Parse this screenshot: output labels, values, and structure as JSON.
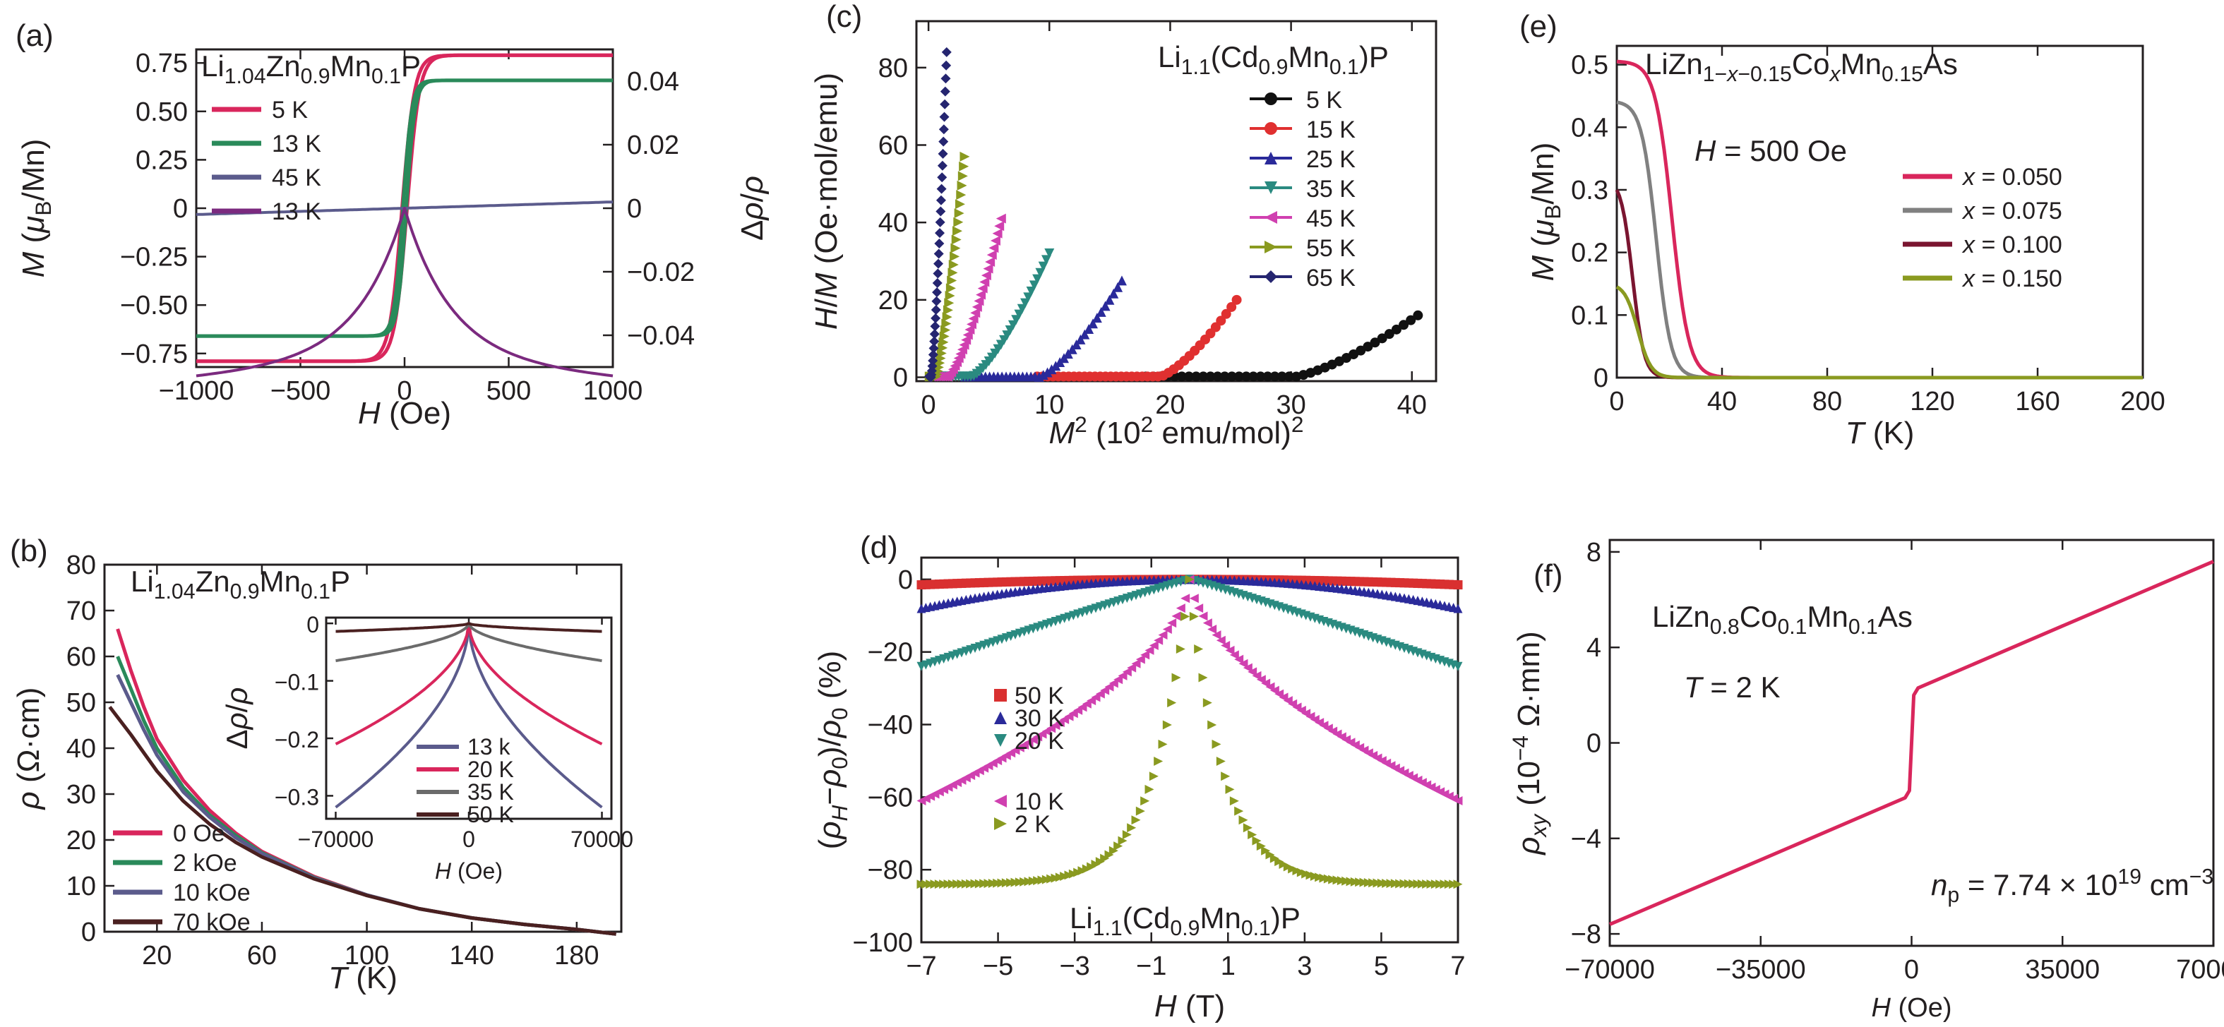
{
  "chart_data": [
    {
      "panel": "(a)",
      "type": "line",
      "annotation": "Li<sub>1.04</sub>Zn<sub>0.9</sub>Mn<sub>0.1</sub>P",
      "xlabel": "<i>H</i> (Oe)",
      "ylabel": "<i>M</i> (<i>μ</i><sub>B</sub>/Mn)",
      "y2label": "Δ<i>ρ</i>/<i>ρ</i>",
      "xlim": [
        -1000,
        1000
      ],
      "ylim": [
        -0.82,
        0.82
      ],
      "y2lim": [
        -0.05,
        0.05
      ],
      "xticks": [
        "−1000",
        "−500",
        "0",
        "500",
        "1000"
      ],
      "xtick_values": [
        -1000,
        -500,
        0,
        500,
        1000
      ],
      "yticks": [
        "−0.75",
        "−0.50",
        "−0.25",
        "0",
        "0.25",
        "0.50",
        "0.75"
      ],
      "ytick_values": [
        -0.75,
        -0.5,
        -0.25,
        0,
        0.25,
        0.5,
        0.75
      ],
      "y2ticks": [
        "−0.04",
        "−0.02",
        "0",
        "0.02",
        "0.04"
      ],
      "y2tick_values": [
        -0.04,
        -0.02,
        0,
        0.02,
        0.04
      ],
      "y2_color": "#7b2a7f",
      "legend_position": "top-left",
      "series": [
        {
          "name": "5 K",
          "color": "#d9265c",
          "kind": "hysteresis",
          "ms": 0.79,
          "width": 60,
          "hc": 12
        },
        {
          "name": "13 K",
          "color": "#2a8a5a",
          "kind": "hysteresis",
          "ms": 0.66,
          "width": 42,
          "hc": 8
        },
        {
          "name": "45 K",
          "color": "#5b5b8c",
          "kind": "linear",
          "slope": 3.25e-05
        },
        {
          "name": "13 K",
          "color": "#7b2a7f",
          "kind": "mr",
          "axis": "y2",
          "depth": -0.048,
          "width": 25
        }
      ]
    },
    {
      "panel": "(b)",
      "type": "line",
      "annotation": "Li<sub>1.04</sub>Zn<sub>0.9</sub>Mn<sub>0.1</sub>P",
      "xlabel": "<i>T</i> (K)",
      "ylabel": "<i>ρ</i> (Ω·cm)",
      "xlim": [
        0,
        197
      ],
      "ylim": [
        0,
        80
      ],
      "xticks": [
        "20",
        "60",
        "100",
        "140",
        "180"
      ],
      "xtick_values": [
        20,
        60,
        100,
        140,
        180
      ],
      "yticks": [
        "0",
        "10",
        "20",
        "30",
        "40",
        "50",
        "60",
        "70",
        "80"
      ],
      "ytick_values": [
        0,
        10,
        20,
        30,
        40,
        50,
        60,
        70,
        80
      ],
      "legend_position": "bottom-left",
      "series": [
        {
          "name": "0 Oe",
          "color": "#d9265c",
          "x": [
            5,
            10,
            15,
            20,
            30,
            40,
            50,
            60,
            80,
            100,
            120,
            140,
            160,
            180,
            195
          ],
          "y": [
            66,
            57,
            49,
            42,
            33,
            26.5,
            21.5,
            17.5,
            12,
            8,
            5,
            3,
            1.6,
            0.5,
            -0.5
          ]
        },
        {
          "name": "2 kOe",
          "color": "#2a8a5a",
          "x": [
            5,
            10,
            15,
            20,
            30,
            40,
            50,
            60,
            80,
            100,
            120,
            140,
            160,
            180,
            195
          ],
          "y": [
            60,
            53,
            46,
            40,
            31.5,
            25.5,
            21,
            17.2,
            11.8,
            8,
            5,
            3,
            1.6,
            0.5,
            -0.5
          ]
        },
        {
          "name": "10 kOe",
          "color": "#5b5b8c",
          "x": [
            5,
            10,
            15,
            20,
            30,
            40,
            50,
            60,
            80,
            100,
            120,
            140,
            160,
            180,
            195
          ],
          "y": [
            56,
            50,
            44,
            38.5,
            30.5,
            25,
            20.5,
            17,
            11.7,
            8,
            5,
            3,
            1.6,
            0.5,
            -0.5
          ]
        },
        {
          "name": "70 kOe",
          "color": "#4a2020",
          "x": [
            2,
            10,
            15,
            20,
            30,
            40,
            50,
            60,
            80,
            100,
            120,
            140,
            160,
            180,
            195
          ],
          "y": [
            49,
            43,
            39,
            35,
            28.5,
            23.5,
            19.5,
            16.3,
            11.5,
            7.9,
            5,
            3,
            1.6,
            0.5,
            -0.5
          ]
        }
      ],
      "inset": {
        "ylabel": "Δ<i>ρ</i>/<i>ρ</i>",
        "xlabel": "<i>H</i> (Oe)",
        "xlim": [
          -75000,
          75000
        ],
        "ylim": [
          -0.34,
          0.01
        ],
        "xticks": [
          "−70000",
          "0",
          "70000"
        ],
        "xtick_values": [
          -70000,
          0,
          70000
        ],
        "yticks": [
          "0",
          "−0.1",
          "−0.2",
          "−0.3"
        ],
        "ytick_values": [
          0,
          -0.1,
          -0.2,
          -0.3
        ],
        "series": [
          {
            "name": "13 k",
            "color": "#5b5b8c",
            "min": -0.32
          },
          {
            "name": "20 K",
            "color": "#d9265c",
            "min": -0.21
          },
          {
            "name": "35 K",
            "color": "#6b6b6b",
            "min": -0.065
          },
          {
            "name": "50 K",
            "color": "#4a2020",
            "min": -0.014
          }
        ]
      }
    },
    {
      "panel": "(c)",
      "type": "scatter",
      "annotation": "Li<sub>1.1</sub>(Cd<sub>0.9</sub>Mn<sub>0.1</sub>)P",
      "xlabel": "<i>M</i><sup>2</sup> (10<sup>2</sup> emu/mol)<sup>2</sup>",
      "ylabel": "<i>H</i>/<i>M</i> (Oe·mol/emu)",
      "xlim": [
        -1,
        42
      ],
      "ylim": [
        -1,
        92
      ],
      "xticks": [
        "0",
        "10",
        "20",
        "30",
        "40"
      ],
      "xtick_values": [
        0,
        10,
        20,
        30,
        40
      ],
      "yticks": [
        "0",
        "20",
        "40",
        "60",
        "80"
      ],
      "ytick_values": [
        0,
        20,
        40,
        60,
        80
      ],
      "legend_position": "right",
      "series": [
        {
          "name": "5 K",
          "color": "#111111",
          "marker": "circle",
          "x0": 18,
          "x1": 30,
          "x2": 40.5,
          "y2": 16
        },
        {
          "name": "15 K",
          "color": "#e03030",
          "marker": "circle",
          "x0": 9,
          "x1": 19,
          "x2": 25.5,
          "y2": 20
        },
        {
          "name": "25 K",
          "color": "#2a2a9a",
          "marker": "triangle-up",
          "x0": 3,
          "x1": 9,
          "x2": 16,
          "y2": 25
        },
        {
          "name": "35 K",
          "color": "#2a8a80",
          "marker": "triangle-down",
          "x0": 0.5,
          "x1": 3.5,
          "x2": 10,
          "y2": 32
        },
        {
          "name": "45 K",
          "color": "#d040b0",
          "marker": "triangle-left",
          "x0": 0.2,
          "x1": 1.5,
          "x2": 6,
          "y2": 41
        },
        {
          "name": "55 K",
          "color": "#8a9a20",
          "marker": "triangle-right",
          "x0": 0.1,
          "x1": 0.6,
          "x2": 3,
          "y2": 57
        },
        {
          "name": "65 K",
          "color": "#252570",
          "marker": "diamond",
          "x0": 0.05,
          "x1": 0.2,
          "x2": 1.5,
          "y2": 84
        }
      ]
    },
    {
      "panel": "(d)",
      "type": "scatter",
      "annotation": "Li<sub>1.1</sub>(Cd<sub>0.9</sub>Mn<sub>0.1</sub>)P",
      "xlabel": "<i>H</i> (T)",
      "ylabel": "(<i>ρ<sub>H</sub></i>−<i>ρ</i><sub>0</sub>)/<i>ρ</i><sub>0</sub> (%)",
      "xlim": [
        -7,
        7
      ],
      "ylim": [
        -100,
        6
      ],
      "xticks": [
        "−7",
        "−5",
        "−3",
        "−1",
        "1",
        "3",
        "5",
        "7"
      ],
      "xtick_values": [
        -7,
        -5,
        -3,
        -1,
        1,
        3,
        5,
        7
      ],
      "yticks": [
        "0",
        "−20",
        "−40",
        "−60",
        "−80",
        "−100"
      ],
      "ytick_values": [
        0,
        -20,
        -40,
        -60,
        -80,
        -100
      ],
      "legend_position": "left",
      "series": [
        {
          "name": "50 K",
          "color": "#d93030",
          "marker": "square",
          "end": -1.5,
          "shape": "parabola"
        },
        {
          "name": "30 K",
          "color": "#2a2a9a",
          "marker": "triangle-up",
          "end": -8,
          "shape": "parabola"
        },
        {
          "name": "20 K",
          "color": "#2a8a80",
          "marker": "triangle-down",
          "end": -24,
          "shape": "linear"
        },
        {
          "name": "10 K",
          "color": "#d040b0",
          "marker": "triangle-left",
          "end": -61,
          "shape": "cusp"
        },
        {
          "name": "2 K",
          "color": "#8a9a20",
          "marker": "triangle-right",
          "end": -84,
          "shape": "sharp"
        }
      ]
    },
    {
      "panel": "(e)",
      "type": "line",
      "annotation": "LiZn<sub>1−<i>x</i>−0.15</sub>Co<sub><i>x</i></sub>Mn<sub>0.15</sub>As",
      "field_note": "<i>H</i> = 500 Oe",
      "xlabel": "<i>T</i> (K)",
      "ylabel": "<i>M</i> (<i>μ</i><sub>B</sub>/Mn)",
      "xlim": [
        0,
        200
      ],
      "ylim": [
        0,
        0.53
      ],
      "xticks": [
        "0",
        "40",
        "80",
        "120",
        "160",
        "200"
      ],
      "xtick_values": [
        0,
        40,
        80,
        120,
        160,
        200
      ],
      "yticks": [
        "0",
        "0.1",
        "0.2",
        "0.3",
        "0.4",
        "0.5"
      ],
      "ytick_values": [
        0,
        0.1,
        0.2,
        0.3,
        0.4,
        0.5
      ],
      "legend_position": "right",
      "series": [
        {
          "name": "<i>x</i> = 0.050",
          "color": "#d9265c",
          "m0": 0.505,
          "tc": 21,
          "w": 3.2
        },
        {
          "name": "<i>x</i> = 0.075",
          "color": "#808080",
          "m0": 0.44,
          "tc": 15,
          "w": 2.8
        },
        {
          "name": "<i>x</i> = 0.100",
          "color": "#7a1530",
          "m0": 0.3,
          "tc": 6,
          "w": 2.2
        },
        {
          "name": "<i>x</i> = 0.150",
          "color": "#8a9a20",
          "m0": 0.145,
          "tc": 8,
          "w": 2.5
        }
      ]
    },
    {
      "panel": "(f)",
      "type": "line",
      "annotation": "LiZn<sub>0.8</sub>Co<sub>0.1</sub>Mn<sub>0.1</sub>As",
      "temp_note": "<i>T</i> = 2 K",
      "np_note": "<i>n</i><sub>p</sub> = 7.74 × 10<sup>19</sup> cm<sup>−3</sup>",
      "xlabel": "<i>H</i> (Oe)",
      "ylabel": "<i>ρ<sub>xy</sub></i> (10<sup>−4</sup> Ω·mm)",
      "xlim": [
        -70000,
        70000
      ],
      "ylim": [
        -8.5,
        8.5
      ],
      "xticks": [
        "−70000",
        "−35000",
        "0",
        "35000",
        "70000"
      ],
      "xtick_values": [
        -70000,
        -35000,
        0,
        35000,
        70000
      ],
      "yticks": [
        "−8",
        "−4",
        "0",
        "4",
        "8"
      ],
      "ytick_values": [
        -8,
        -4,
        0,
        4,
        8
      ],
      "series": [
        {
          "name": "",
          "color": "#d9265c",
          "x": [
            -70000,
            -35000,
            -1500,
            -500,
            0,
            500,
            1500,
            35000,
            70000
          ],
          "y": [
            -7.6,
            -4.9,
            -2.3,
            -2.0,
            0,
            2.0,
            2.3,
            4.9,
            7.6
          ]
        }
      ]
    }
  ]
}
